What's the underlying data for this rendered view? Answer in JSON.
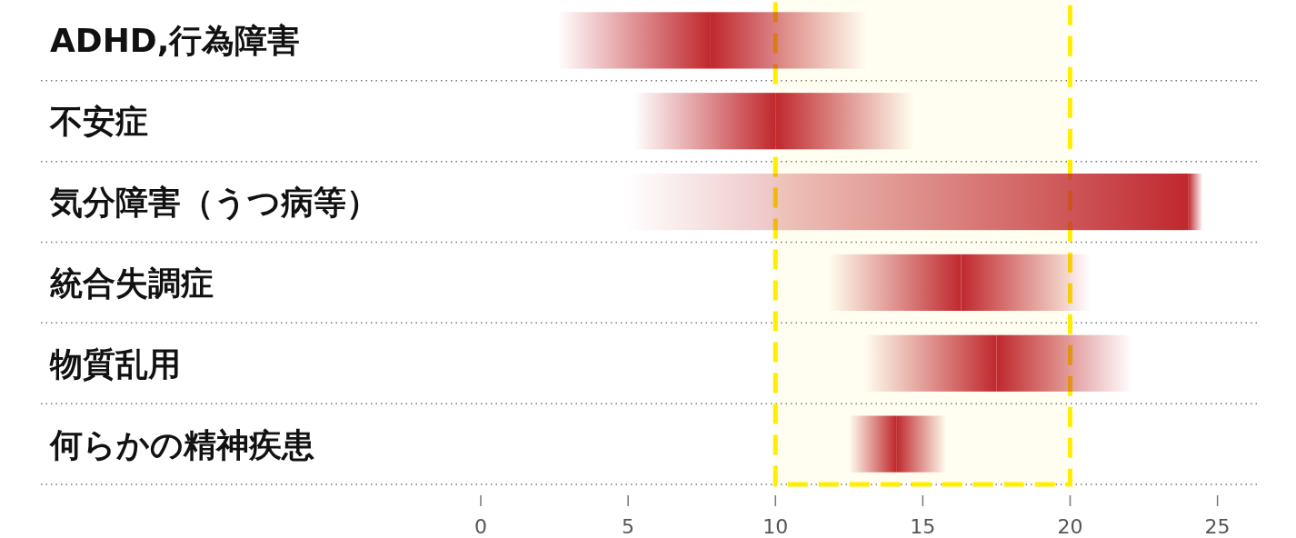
{
  "chart_data": {
    "type": "bar",
    "orientation": "horizontal",
    "categories": [
      "ADHD,行為障害",
      "不安症",
      "気分障害（うつ病等）",
      "統合失調症",
      "物質乱用",
      "何らかの精神疾患"
    ],
    "series": [
      {
        "color": "#c0282d",
        "base": [
          2.6,
          5.2,
          4.9,
          11.8,
          13.0,
          12.5
        ],
        "values": [
          5.2,
          4.8,
          19.1,
          4.5,
          4.5,
          1.6
        ]
      },
      {
        "color": "#c0282d",
        "base": [
          7.8,
          10.0,
          24.0,
          16.3,
          17.5,
          14.1
        ],
        "values": [
          5.3,
          4.7,
          0.5,
          4.4,
          4.6,
          1.7
        ]
      }
    ],
    "xlim": [
      0,
      26.4
    ],
    "xticks": [
      0,
      5,
      10,
      15,
      20,
      25
    ],
    "bands": [
      {
        "axis": "x",
        "from": 10,
        "to": 20,
        "color": "#ffee00"
      }
    ]
  }
}
